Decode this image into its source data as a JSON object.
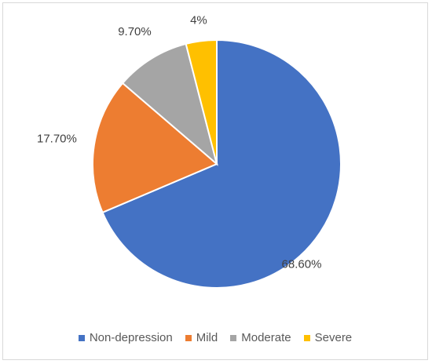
{
  "chart_data": {
    "type": "pie",
    "categories": [
      "Non-depression",
      "Mild",
      "Moderate",
      "Severe"
    ],
    "values": [
      68.6,
      17.7,
      9.7,
      4.0
    ],
    "labels": [
      "68.60%",
      "17.70%",
      "9.70%",
      "4%"
    ],
    "colors": [
      "#4472c4",
      "#ed7d31",
      "#a5a5a5",
      "#ffc000"
    ],
    "legend_position": "bottom",
    "start_angle": "12 o'clock",
    "direction": "clockwise"
  },
  "legend": {
    "items": [
      {
        "label": "Non-depression",
        "color": "#4472c4"
      },
      {
        "label": "Mild",
        "color": "#ed7d31"
      },
      {
        "label": "Moderate",
        "color": "#a5a5a5"
      },
      {
        "label": "Severe",
        "color": "#ffc000"
      }
    ]
  }
}
